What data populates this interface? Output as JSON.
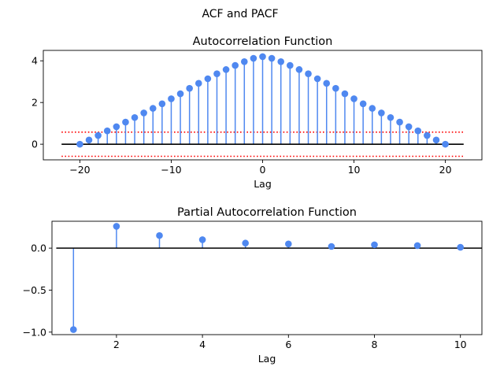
{
  "figure": {
    "suptitle": "ACF and PACF"
  },
  "chart_data": [
    {
      "type": "stem",
      "title": "Autocorrelation Function",
      "xlabel": "Lag",
      "ylabel": "",
      "xlim": [
        -24,
        24
      ],
      "ylim": [
        -0.75,
        4.5
      ],
      "xticks": [
        -20,
        -10,
        0,
        10,
        20
      ],
      "xtick_labels": [
        "−20",
        "−10",
        "0",
        "10",
        "20"
      ],
      "yticks": [
        0,
        2,
        4
      ],
      "ytick_labels": [
        "0",
        "2",
        "4"
      ],
      "x": [
        -20,
        -19,
        -18,
        -17,
        -16,
        -15,
        -14,
        -13,
        -12,
        -11,
        -10,
        -9,
        -8,
        -7,
        -6,
        -5,
        -4,
        -3,
        -2,
        -1,
        0,
        1,
        2,
        3,
        4,
        5,
        6,
        7,
        8,
        9,
        10,
        11,
        12,
        13,
        14,
        15,
        16,
        17,
        18,
        19,
        20
      ],
      "values": [
        0.0,
        0.2,
        0.42,
        0.64,
        0.84,
        1.06,
        1.28,
        1.5,
        1.72,
        1.94,
        2.18,
        2.42,
        2.68,
        2.92,
        3.14,
        3.38,
        3.58,
        3.78,
        3.96,
        4.12,
        4.2,
        4.12,
        3.96,
        3.78,
        3.58,
        3.38,
        3.14,
        2.92,
        2.68,
        2.42,
        2.18,
        1.94,
        1.72,
        1.5,
        1.28,
        1.06,
        0.84,
        0.64,
        0.42,
        0.2,
        0.0
      ],
      "baseline": {
        "y": 0,
        "x_from": -22,
        "x_to": 22,
        "color": "#000000"
      },
      "conf_lines": {
        "values": [
          0.58,
          -0.58
        ],
        "x_from": -22,
        "x_to": 22,
        "color": "#ff0000",
        "style": "dotted"
      },
      "colors": {
        "marker": "#4f88f0",
        "stem": "#4f88f0"
      }
    },
    {
      "type": "stem",
      "title": "Partial Autocorrelation Function",
      "xlabel": "Lag",
      "ylabel": "",
      "xlim": [
        0.5,
        10.5
      ],
      "ylim": [
        -1.03,
        0.32
      ],
      "xticks": [
        2,
        4,
        6,
        8,
        10
      ],
      "xtick_labels": [
        "2",
        "4",
        "6",
        "8",
        "10"
      ],
      "yticks": [
        -1.0,
        -0.5,
        0.0
      ],
      "ytick_labels": [
        "−1.0",
        "−0.5",
        "0.0"
      ],
      "x": [
        1,
        2,
        3,
        4,
        5,
        6,
        7,
        8,
        9,
        10
      ],
      "values": [
        -0.97,
        0.26,
        0.15,
        0.1,
        0.06,
        0.05,
        0.02,
        0.04,
        0.03,
        0.01
      ],
      "baseline": {
        "y": 0,
        "x_from": 0.6,
        "x_to": 10.5,
        "color": "#000000"
      },
      "colors": {
        "marker": "#4f88f0",
        "stem": "#4f88f0"
      }
    }
  ]
}
